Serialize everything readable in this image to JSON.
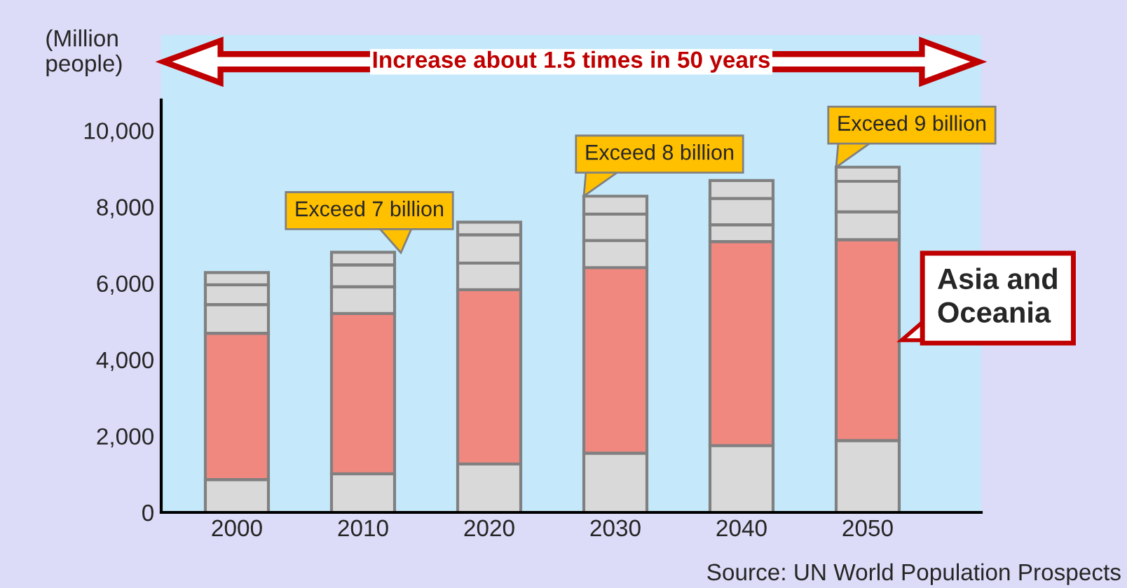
{
  "chart_data": {
    "type": "bar",
    "stacked": true,
    "ylabel": "(Million\npeople)",
    "categories": [
      "2000",
      "2010",
      "2020",
      "2030",
      "2040",
      "2050"
    ],
    "series": [
      {
        "color": "#d9d9d9",
        "values": [
          860,
          1010,
          1270,
          1550,
          1750,
          1880
        ]
      },
      {
        "name": "Asia and Oceania",
        "color": "#f08880",
        "values": [
          3830,
          4200,
          4560,
          4860,
          5340,
          5260
        ]
      },
      {
        "color": "#d9d9d9",
        "values": [
          750,
          700,
          700,
          710,
          440,
          730
        ]
      },
      {
        "color": "#d9d9d9",
        "values": [
          520,
          570,
          740,
          690,
          690,
          800
        ]
      },
      {
        "color": "#d9d9d9",
        "values": [
          320,
          330,
          330,
          470,
          470,
          370
        ]
      }
    ],
    "ylim": [
      0,
      12500
    ],
    "yticks": [
      0,
      {
        "value": 2000,
        "label": "2,000"
      },
      {
        "value": 4000,
        "label": "4,000"
      },
      {
        "value": 6000,
        "label": "6,000"
      },
      {
        "value": 8000,
        "label": "8,000"
      },
      {
        "value": 10000,
        "label": "10,000"
      }
    ],
    "grid": false,
    "legend": false,
    "annotations": [
      "Increase about 1.5 times in 50 years",
      {
        "text": "Exceed 7 billion",
        "x": "2010",
        "y": 6800
      },
      {
        "text": "Exceed 8 billion",
        "x": "2030",
        "y": 8280
      },
      {
        "text": "Exceed 9 billion",
        "x": "2050",
        "y": 9040
      },
      "Source: UN World Population Prospects"
    ]
  }
}
